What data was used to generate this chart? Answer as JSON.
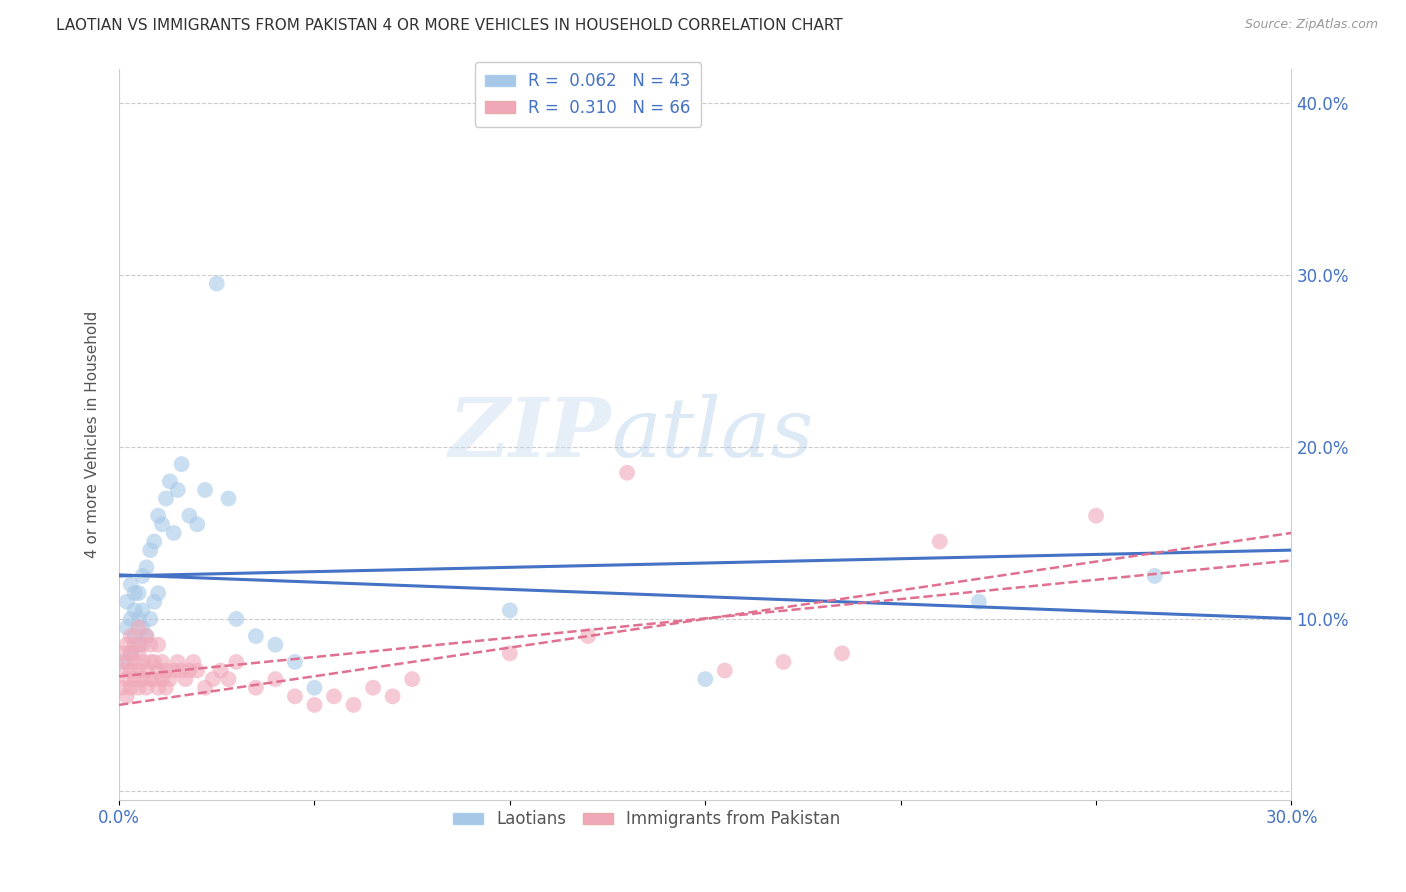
{
  "title": "LAOTIAN VS IMMIGRANTS FROM PAKISTAN 4 OR MORE VEHICLES IN HOUSEHOLD CORRELATION CHART",
  "source": "Source: ZipAtlas.com",
  "ylabel": "4 or more Vehicles in Household",
  "xlim": [
    0.0,
    0.3
  ],
  "ylim": [
    -0.005,
    0.42
  ],
  "xticks": [
    0.0,
    0.05,
    0.1,
    0.15,
    0.2,
    0.25,
    0.3
  ],
  "yticks": [
    0.0,
    0.1,
    0.2,
    0.3,
    0.4
  ],
  "xtick_labels": [
    "0.0%",
    "",
    "",
    "",
    "",
    "",
    "30.0%"
  ],
  "ytick_labels_right": [
    "",
    "10.0%",
    "20.0%",
    "30.0%",
    "40.0%"
  ],
  "watermark_zip": "ZIP",
  "watermark_atlas": "atlas",
  "blue_color": "#a8c8e8",
  "pink_color": "#f0a8b8",
  "blue_line_color": "#4472c4",
  "pink_line_color": "#e07090",
  "blue_scatter_x": [
    0.001,
    0.002,
    0.002,
    0.003,
    0.003,
    0.003,
    0.004,
    0.004,
    0.004,
    0.005,
    0.005,
    0.005,
    0.006,
    0.006,
    0.006,
    0.007,
    0.007,
    0.008,
    0.008,
    0.009,
    0.009,
    0.01,
    0.01,
    0.011,
    0.012,
    0.013,
    0.014,
    0.015,
    0.016,
    0.018,
    0.02,
    0.022,
    0.025,
    0.028,
    0.03,
    0.035,
    0.04,
    0.045,
    0.05,
    0.1,
    0.15,
    0.22,
    0.265
  ],
  "blue_scatter_y": [
    0.075,
    0.095,
    0.11,
    0.08,
    0.1,
    0.12,
    0.09,
    0.105,
    0.115,
    0.085,
    0.1,
    0.115,
    0.095,
    0.105,
    0.125,
    0.09,
    0.13,
    0.1,
    0.14,
    0.11,
    0.145,
    0.115,
    0.16,
    0.155,
    0.17,
    0.18,
    0.15,
    0.175,
    0.19,
    0.16,
    0.155,
    0.175,
    0.295,
    0.17,
    0.1,
    0.09,
    0.085,
    0.075,
    0.06,
    0.105,
    0.065,
    0.11,
    0.125
  ],
  "pink_scatter_x": [
    0.001,
    0.001,
    0.001,
    0.002,
    0.002,
    0.002,
    0.002,
    0.003,
    0.003,
    0.003,
    0.003,
    0.004,
    0.004,
    0.004,
    0.005,
    0.005,
    0.005,
    0.005,
    0.006,
    0.006,
    0.006,
    0.007,
    0.007,
    0.007,
    0.008,
    0.008,
    0.008,
    0.009,
    0.009,
    0.01,
    0.01,
    0.01,
    0.011,
    0.011,
    0.012,
    0.012,
    0.013,
    0.014,
    0.015,
    0.016,
    0.017,
    0.018,
    0.019,
    0.02,
    0.022,
    0.024,
    0.026,
    0.028,
    0.03,
    0.035,
    0.04,
    0.045,
    0.05,
    0.055,
    0.06,
    0.065,
    0.07,
    0.075,
    0.1,
    0.12,
    0.13,
    0.155,
    0.17,
    0.185,
    0.21,
    0.25
  ],
  "pink_scatter_y": [
    0.06,
    0.07,
    0.08,
    0.055,
    0.065,
    0.075,
    0.085,
    0.06,
    0.07,
    0.08,
    0.09,
    0.065,
    0.075,
    0.085,
    0.06,
    0.07,
    0.08,
    0.095,
    0.065,
    0.075,
    0.085,
    0.06,
    0.07,
    0.09,
    0.065,
    0.075,
    0.085,
    0.065,
    0.075,
    0.06,
    0.07,
    0.085,
    0.065,
    0.075,
    0.06,
    0.07,
    0.065,
    0.07,
    0.075,
    0.07,
    0.065,
    0.07,
    0.075,
    0.07,
    0.06,
    0.065,
    0.07,
    0.065,
    0.075,
    0.06,
    0.065,
    0.055,
    0.05,
    0.055,
    0.05,
    0.06,
    0.055,
    0.065,
    0.08,
    0.09,
    0.185,
    0.07,
    0.075,
    0.08,
    0.145,
    0.16
  ]
}
